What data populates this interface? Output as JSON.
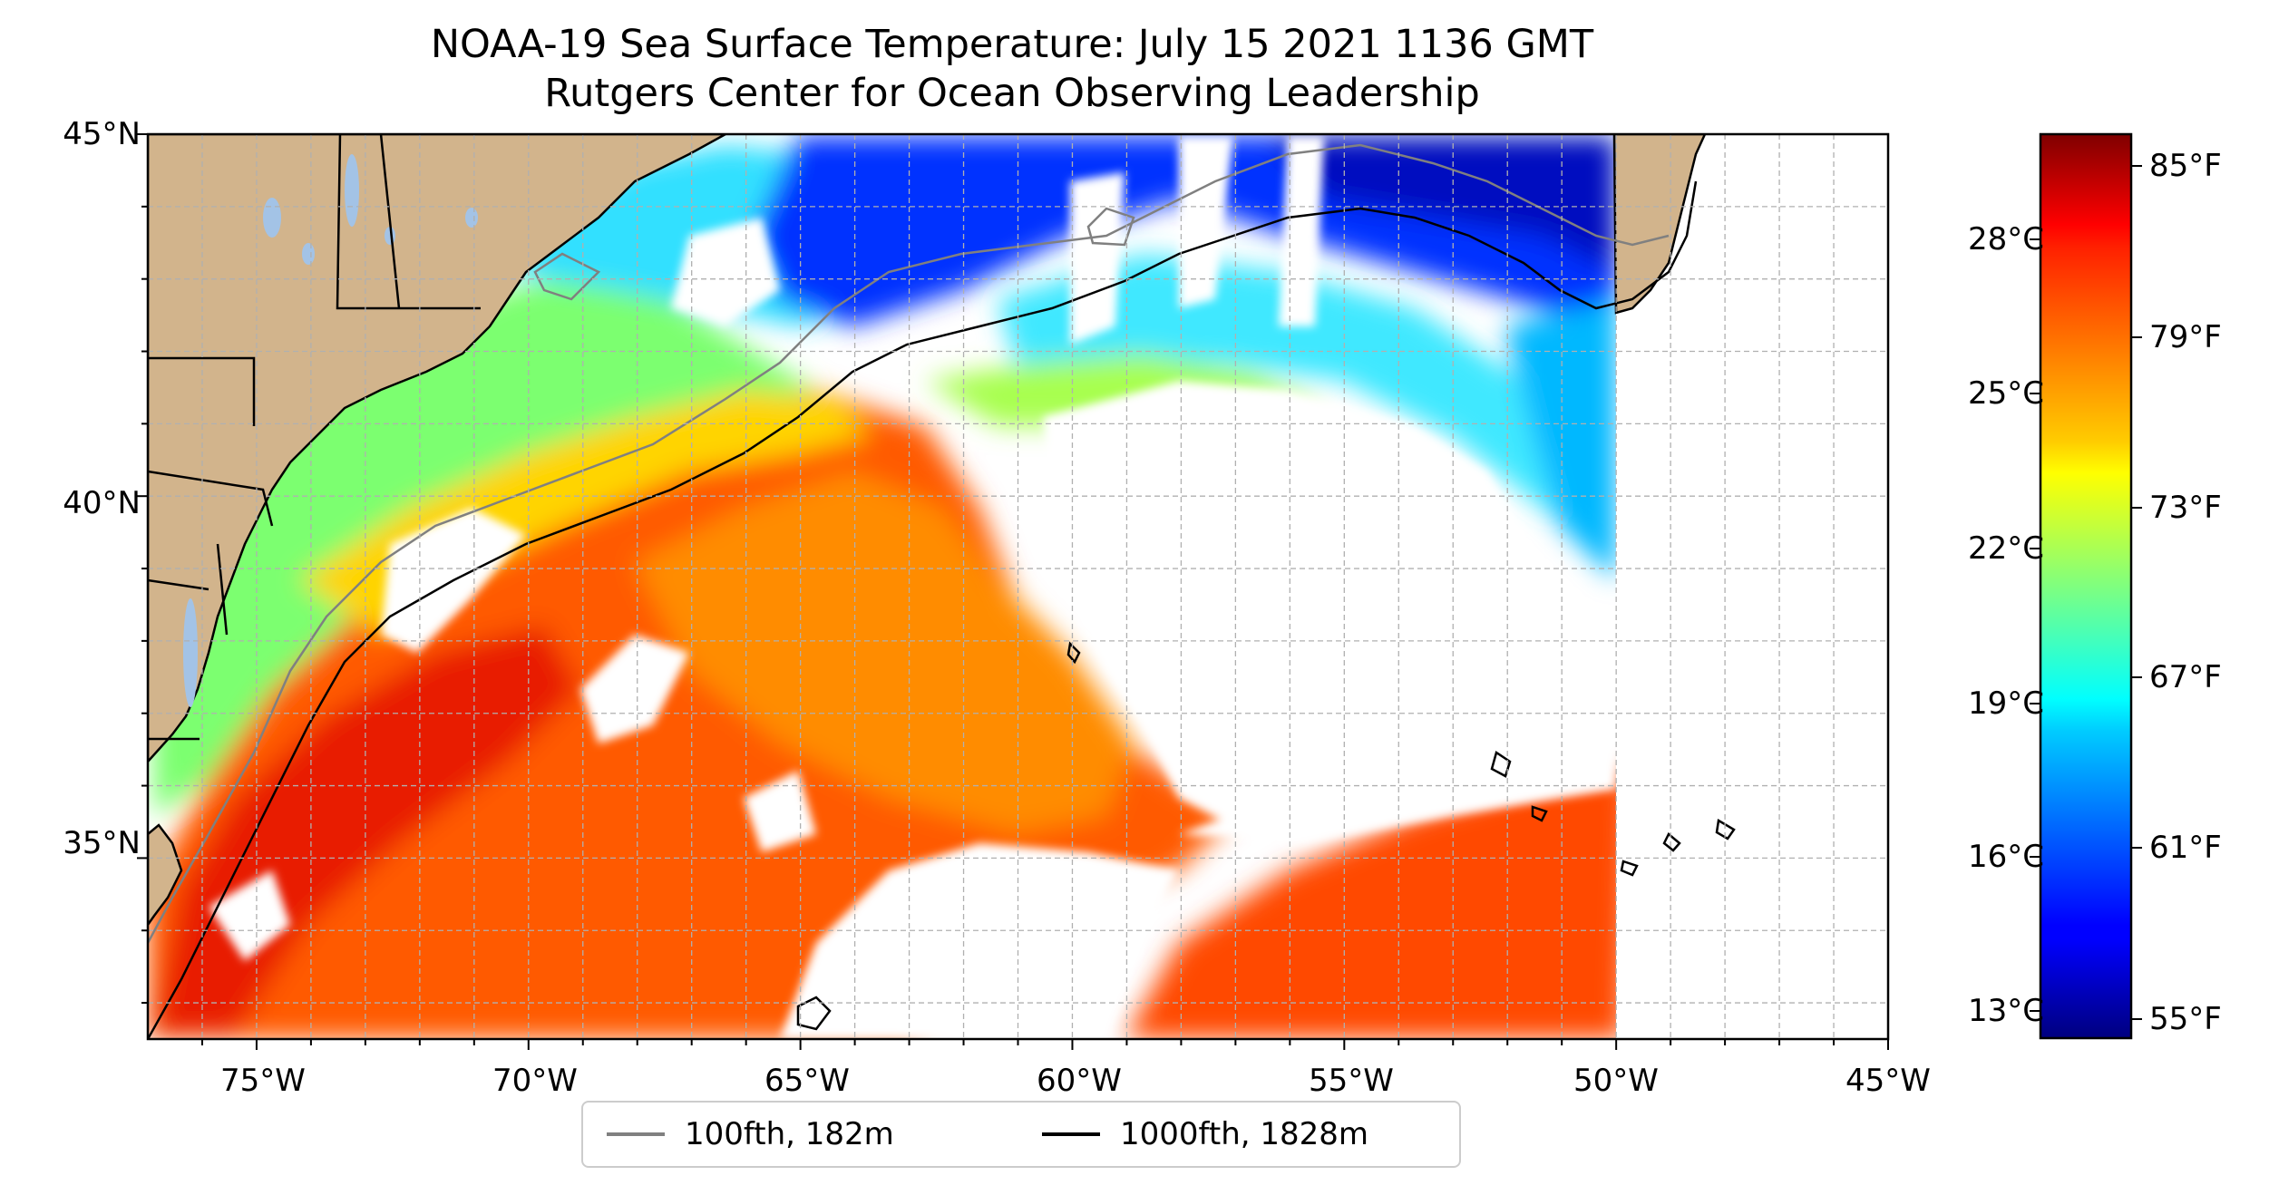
{
  "title": {
    "line1": "NOAA-19 Sea Surface Temperature: July 15 2021 1136 GMT",
    "line2": "Rutgers Center for Ocean Observing Leadership"
  },
  "map": {
    "lon_range": [
      -77,
      -45
    ],
    "lat_range": [
      32.5,
      45
    ],
    "data_lon_limit": -50,
    "grid": "dashed, 1 degree",
    "land_color": "#d2b48c",
    "water_inland_color": "#a3c3e6",
    "lat_labels": [
      "45°N",
      "40°N",
      "35°N"
    ],
    "lon_labels": [
      "75°W",
      "70°W",
      "65°W",
      "60°W",
      "55°W",
      "50°W",
      "45°W"
    ]
  },
  "colorbar": {
    "colormap": "jet",
    "celsius_labels": [
      "28°C",
      "25°C",
      "22°C",
      "19°C",
      "16°C",
      "13°C"
    ],
    "fahrenheit_labels": [
      "85°F",
      "79°F",
      "73°F",
      "67°F",
      "61°F",
      "55°F"
    ]
  },
  "legend": {
    "items": [
      {
        "label": "100fth, 182m",
        "color": "#808080"
      },
      {
        "label": "1000fth, 1828m",
        "color": "#000000"
      }
    ]
  }
}
